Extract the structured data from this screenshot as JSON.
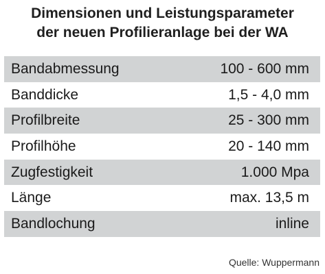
{
  "title": {
    "line1": "Dimensionen und Leistungsparameter",
    "line2": "der neuen Profilieranlage bei der WA"
  },
  "rows": [
    {
      "label": "Bandabmessung",
      "value": "100 - 600 mm"
    },
    {
      "label": "Banddicke",
      "value": "1,5 - 4,0 mm"
    },
    {
      "label": "Profilbreite",
      "value": "25 - 300 mm"
    },
    {
      "label": "Profilhöhe",
      "value": "20 - 140 mm"
    },
    {
      "label": "Zugfestigkeit",
      "value": "1.000 Mpa"
    },
    {
      "label": "Länge",
      "value": "max. 13,5 m"
    },
    {
      "label": "Bandlochung",
      "value": "inline"
    }
  ],
  "source": "Quelle: Wuppermann",
  "colors": {
    "row_shade": "#d1d3d4",
    "text": "#1a1a1a",
    "background": "#ffffff"
  }
}
